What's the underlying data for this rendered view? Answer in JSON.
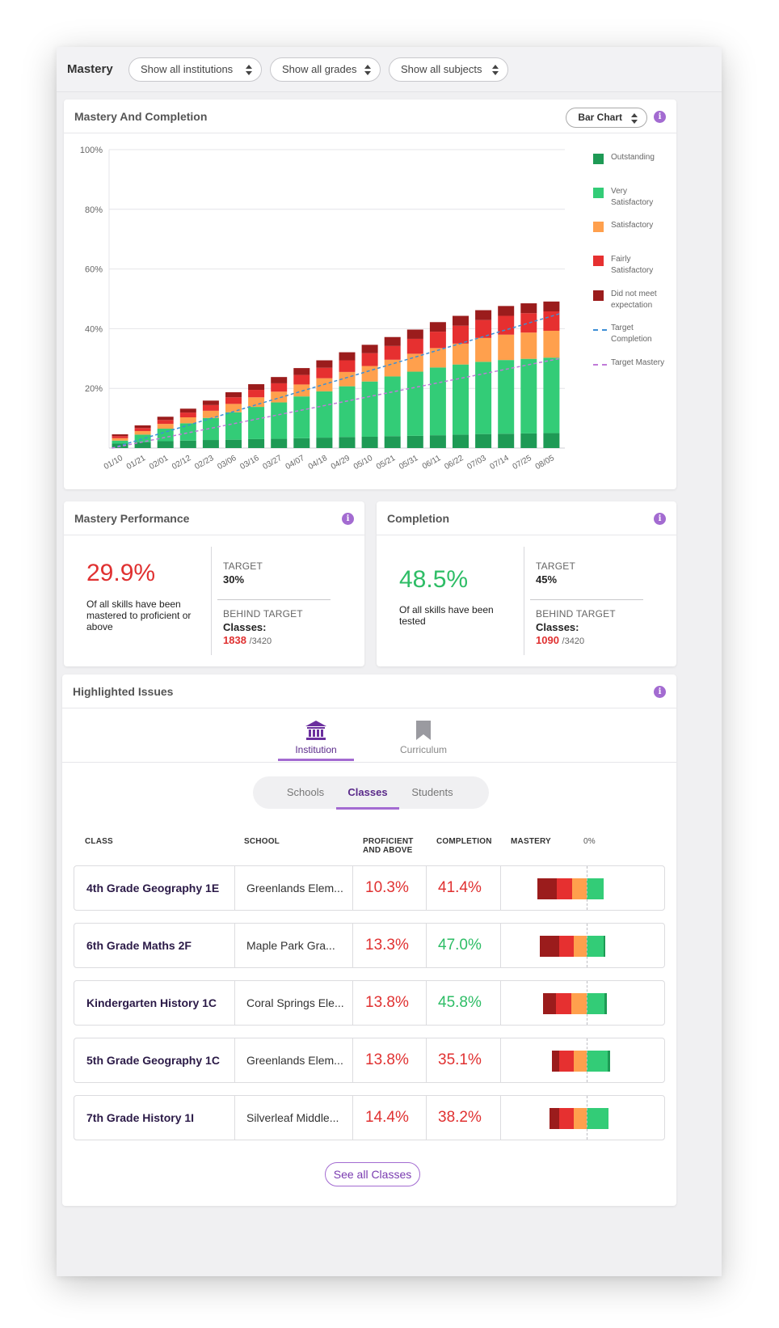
{
  "topbar": {
    "title": "Mastery",
    "filters": [
      "Show all institutions",
      "Show all grades",
      "Show all subjects"
    ]
  },
  "chart_card": {
    "title": "Mastery And Completion",
    "chart_type_label": "Bar Chart",
    "info": "i"
  },
  "chart_data": {
    "type": "bar",
    "stacked": true,
    "categories": [
      "01/10",
      "01/21",
      "02/01",
      "02/12",
      "02/23",
      "03/06",
      "03/16",
      "03/27",
      "04/07",
      "04/18",
      "04/29",
      "05/10",
      "05/21",
      "05/31",
      "06/11",
      "06/22",
      "07/03",
      "07/14",
      "07/25",
      "08/05"
    ],
    "ylim": [
      0,
      100
    ],
    "yticks": [
      "100%",
      "80%",
      "60%",
      "40%",
      "20%"
    ],
    "ytick_values": [
      100,
      80,
      60,
      40,
      20
    ],
    "grid": true,
    "legend_position": "right",
    "colors": {
      "Outstanding": "#1e9a55",
      "Very Satisfactory": "#33cc77",
      "Satisfactory": "#ffa04d",
      "Fairly Satisfactory": "#e63030",
      "Did not meet expectation": "#9b1c1c",
      "Target Completion": "#3d8fd6",
      "Target Mastery": "#c07ad8"
    },
    "series": [
      {
        "name": "Outstanding",
        "values": [
          1.5,
          2,
          2.3,
          2.5,
          2.7,
          2.8,
          3,
          3.1,
          3.3,
          3.5,
          3.7,
          3.8,
          4,
          4.1,
          4.3,
          4.5,
          4.7,
          4.8,
          4.9,
          5
        ]
      },
      {
        "name": "Very Satisfactory",
        "values": [
          1,
          2.5,
          4.2,
          5.8,
          7.4,
          9.2,
          10.8,
          12.2,
          14,
          15.5,
          17,
          18.5,
          20,
          21.5,
          22.7,
          23.5,
          24.2,
          24.7,
          25,
          25.3
        ]
      },
      {
        "name": "Satisfactory",
        "values": [
          0.8,
          1.2,
          1.6,
          2,
          2.4,
          2.8,
          3.2,
          3.6,
          4,
          4.4,
          4.8,
          5.2,
          5.6,
          6,
          6.5,
          7,
          8,
          8.5,
          8.8,
          9
        ]
      },
      {
        "name": "Fairly Satisfactory",
        "values": [
          0.7,
          1,
          1.3,
          1.6,
          1.9,
          2.2,
          2.5,
          2.8,
          3.2,
          3.5,
          3.9,
          4.3,
          4.6,
          5,
          5.5,
          6,
          6,
          6.3,
          6.5,
          6.5
        ]
      },
      {
        "name": "Did not meet expectation",
        "values": [
          0.6,
          0.9,
          1.1,
          1.3,
          1.5,
          1.7,
          1.9,
          2.1,
          2.3,
          2.5,
          2.7,
          2.8,
          3,
          3.1,
          3.2,
          3.3,
          3.3,
          3.3,
          3.3,
          3.3
        ]
      },
      {
        "name": "Target Completion",
        "line": true,
        "from": [
          0,
          0
        ],
        "to": [
          19,
          45
        ]
      },
      {
        "name": "Target Mastery",
        "line": true,
        "from": [
          0,
          0
        ],
        "to": [
          19,
          30
        ]
      }
    ],
    "legend": [
      "Outstanding",
      "Very Satisfactory",
      "Satisfactory",
      "Fairly Satisfactory",
      "Did not meet expectation",
      "Target Completion",
      "Target Mastery"
    ]
  },
  "mastery_perf": {
    "title": "Mastery Performance",
    "value": "29.9%",
    "description": "Of all skills have been mastered to proficient or above",
    "target_label": "TARGET",
    "target_value": "30%",
    "behind_label": "BEHIND TARGET",
    "classes_label": "Classes:",
    "behind_count": "1838",
    "behind_total": "/3420"
  },
  "completion": {
    "title": "Completion",
    "value": "48.5%",
    "description": "Of all skills have been tested",
    "target_label": "TARGET",
    "target_value": "45%",
    "behind_label": "BEHIND TARGET",
    "classes_label": "Classes:",
    "behind_count": "1090",
    "behind_total": "/3420"
  },
  "issues": {
    "title": "Highlighted Issues",
    "tabs": [
      {
        "label": "Institution",
        "icon": "institution-icon",
        "active": true
      },
      {
        "label": "Curriculum",
        "icon": "bookmark-icon",
        "active": false
      }
    ],
    "segments": [
      "Schools",
      "Classes",
      "Students"
    ],
    "active_segment": "Classes",
    "columns": {
      "class": "CLASS",
      "school": "SCHOOL",
      "proficient_1": "PROFICIENT",
      "proficient_2": "AND ABOVE",
      "completion": "COMPLETION",
      "mastery": "MASTERY",
      "zero": "0%"
    },
    "rows": [
      {
        "class": "4th Grade Geography 1E",
        "school": "Greenlands Elem...",
        "proficient": "10.3%",
        "completion": "41.4%",
        "completion_color": "#e03131",
        "mastery_neg": [
          15,
          12,
          11
        ],
        "mastery_pos": [
          13,
          0
        ]
      },
      {
        "class": "6th Grade Maths 2F",
        "school": "Maple Park Gra...",
        "proficient": "13.3%",
        "completion": "47.0%",
        "completion_color": "#2ebd66",
        "mastery_neg": [
          15,
          11,
          10
        ],
        "mastery_pos": [
          13,
          1.5
        ]
      },
      {
        "class": "Kindergarten History 1C",
        "school": "Coral Springs Ele...",
        "proficient": "13.8%",
        "completion": "45.8%",
        "completion_color": "#2ebd66",
        "mastery_neg": [
          10,
          12,
          12
        ],
        "mastery_pos": [
          14,
          1.5
        ]
      },
      {
        "class": "5th Grade Geography 1C",
        "school": "Greenlands Elem...",
        "proficient": "13.8%",
        "completion": "35.1%",
        "completion_color": "#e03131",
        "mastery_neg": [
          6,
          11,
          10
        ],
        "mastery_pos": [
          16,
          2
        ]
      },
      {
        "class": "7th Grade History 1I",
        "school": "Silverleaf Middle...",
        "proficient": "14.4%",
        "completion": "38.2%",
        "completion_color": "#e03131",
        "mastery_neg": [
          8,
          11,
          10
        ],
        "mastery_pos": [
          17,
          0
        ]
      }
    ],
    "mastery_colors": [
      "#9b1c1c",
      "#e63030",
      "#ffa04d",
      "#33cc77",
      "#1e9a55"
    ],
    "see_all_label": "See all Classes"
  }
}
